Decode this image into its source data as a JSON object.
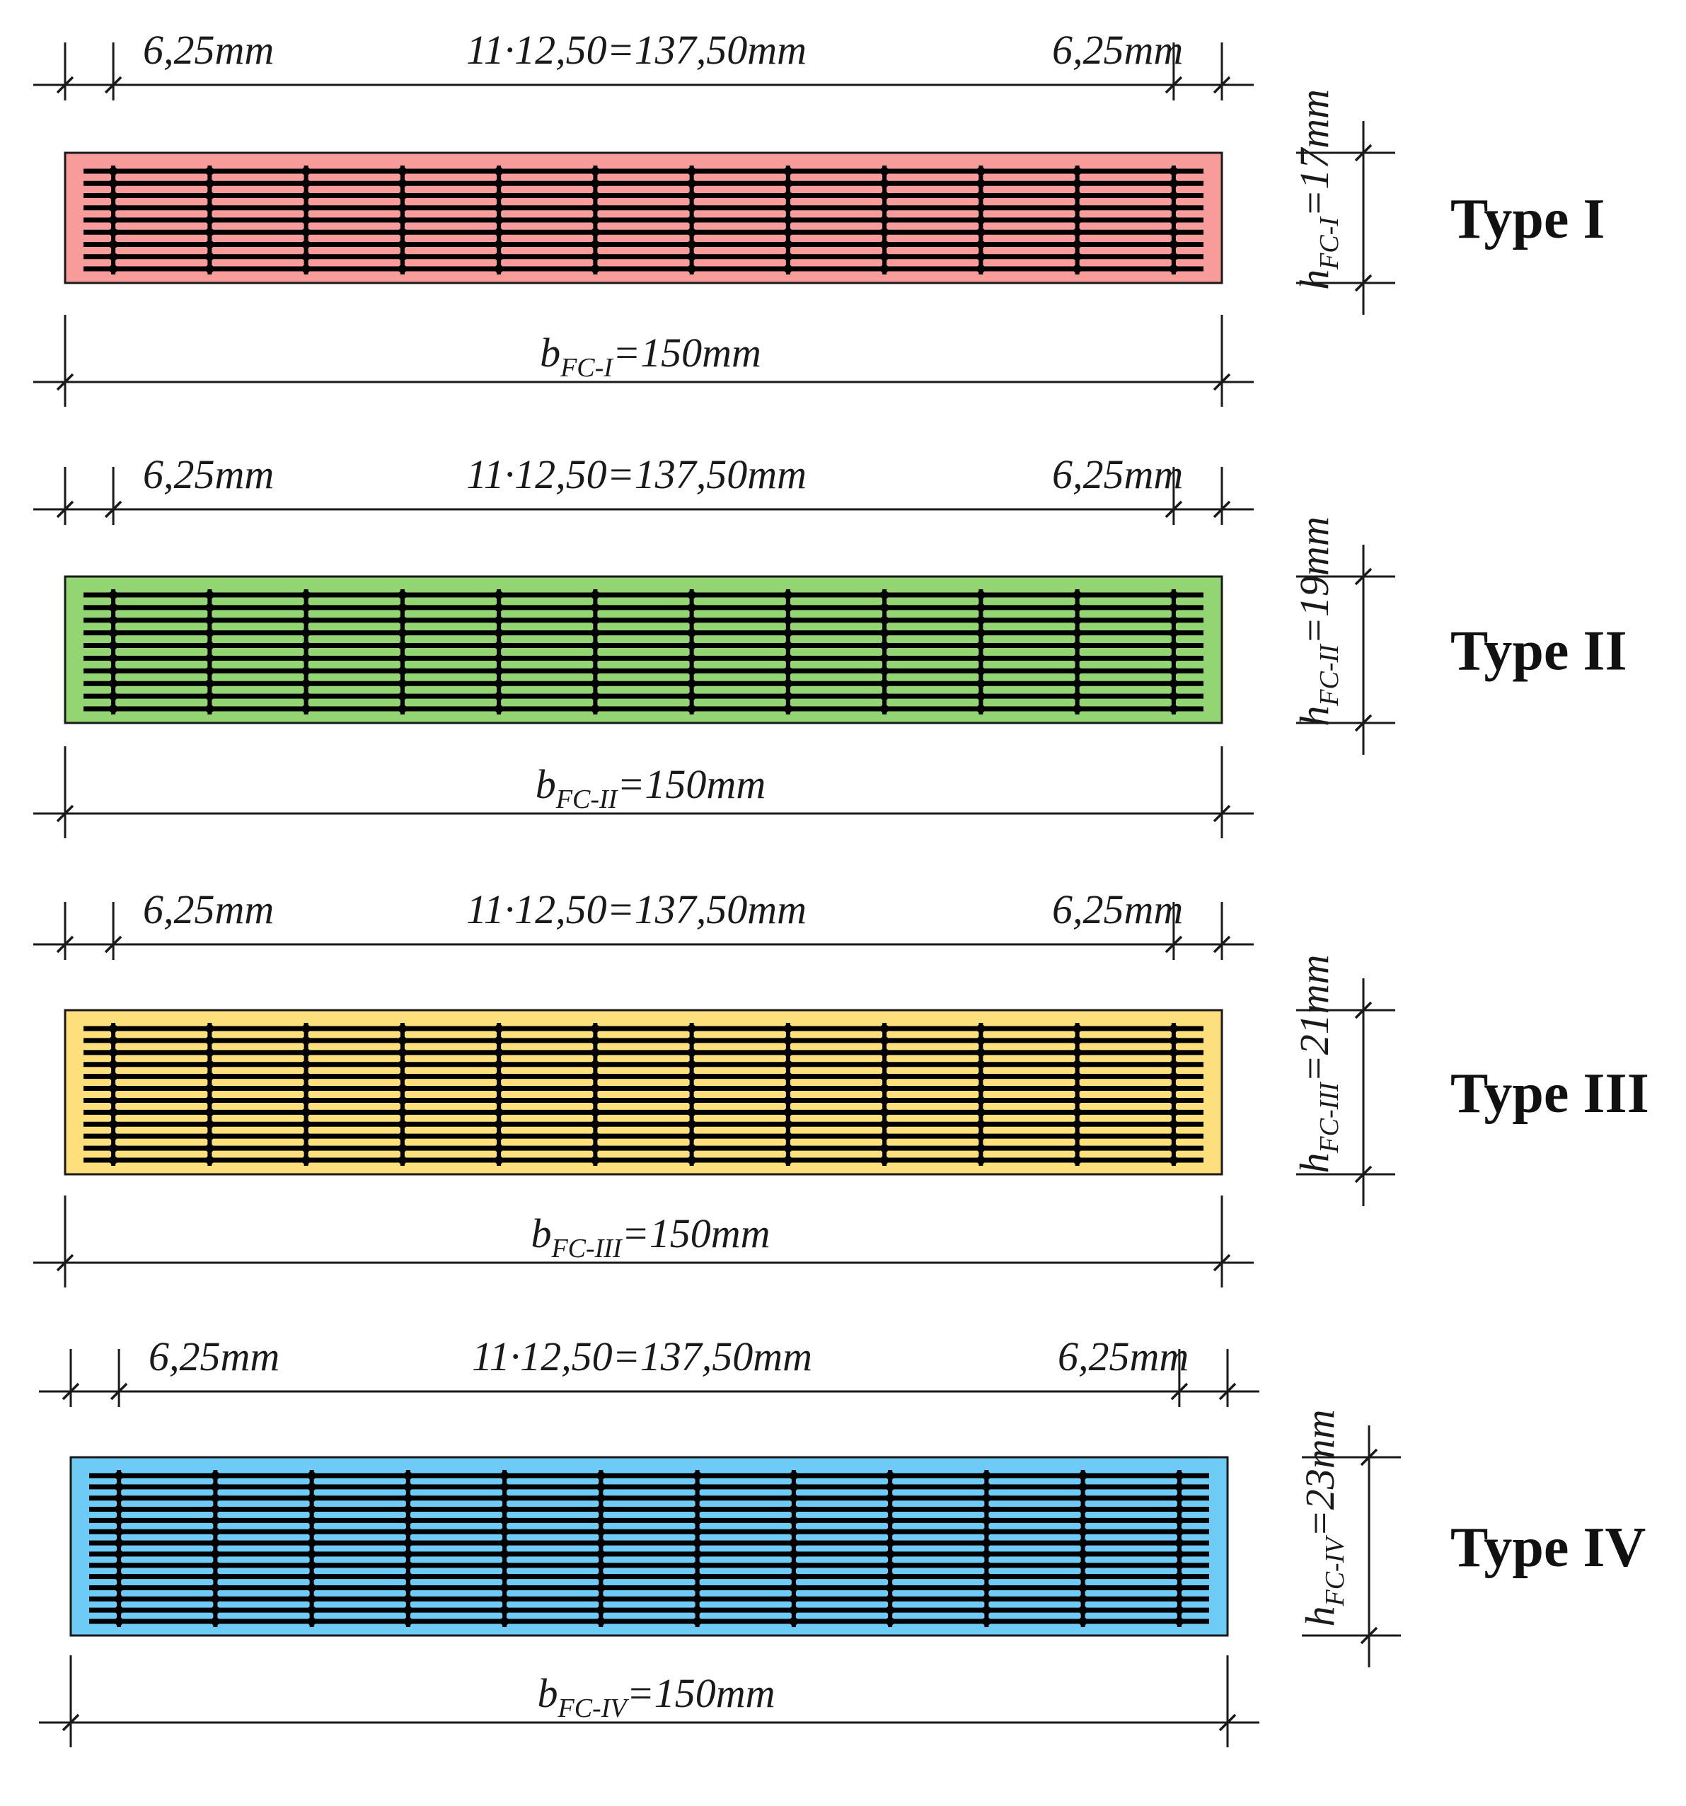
{
  "colors": {
    "ink": "#1a1a1a",
    "rebar": "#000000"
  },
  "specimens": [
    {
      "type_label": "Type I",
      "fill_color": "#f79b9b",
      "left_cover": "6,25mm",
      "spacing": "11·12,50=137,50mm",
      "right_cover": "6,25mm",
      "width_symbol": "b",
      "width_sub": "FC-I",
      "width_value": "=150mm",
      "height_symbol": "h",
      "height_sub": "FC-I",
      "height_value": "=17mm",
      "grid_layers": 9
    },
    {
      "type_label": "Type II",
      "fill_color": "#93d572",
      "left_cover": "6,25mm",
      "spacing": "11·12,50=137,50mm",
      "right_cover": "6,25mm",
      "width_symbol": "b",
      "width_sub": "FC-II",
      "width_value": "=150mm",
      "height_symbol": "h",
      "height_sub": "FC-II",
      "height_value": "=19mm",
      "grid_layers": 10
    },
    {
      "type_label": "Type III",
      "fill_color": "#fddf7c",
      "left_cover": "6,25mm",
      "spacing": "11·12,50=137,50mm",
      "right_cover": "6,25mm",
      "width_symbol": "b",
      "width_sub": "FC-III",
      "width_value": "=150mm",
      "height_symbol": "h",
      "height_sub": "FC-III",
      "height_value": "=21mm",
      "grid_layers": 12
    },
    {
      "type_label": "Type IV",
      "fill_color": "#6ecbf5",
      "left_cover": "6,25mm",
      "spacing": "11·12,50=137,50mm",
      "right_cover": "6,25mm",
      "width_symbol": "b",
      "width_sub": "FC-IV",
      "width_value": "=150mm",
      "height_symbol": "h",
      "height_sub": "FC-IV",
      "height_value": "=23mm",
      "grid_layers": 14
    }
  ]
}
